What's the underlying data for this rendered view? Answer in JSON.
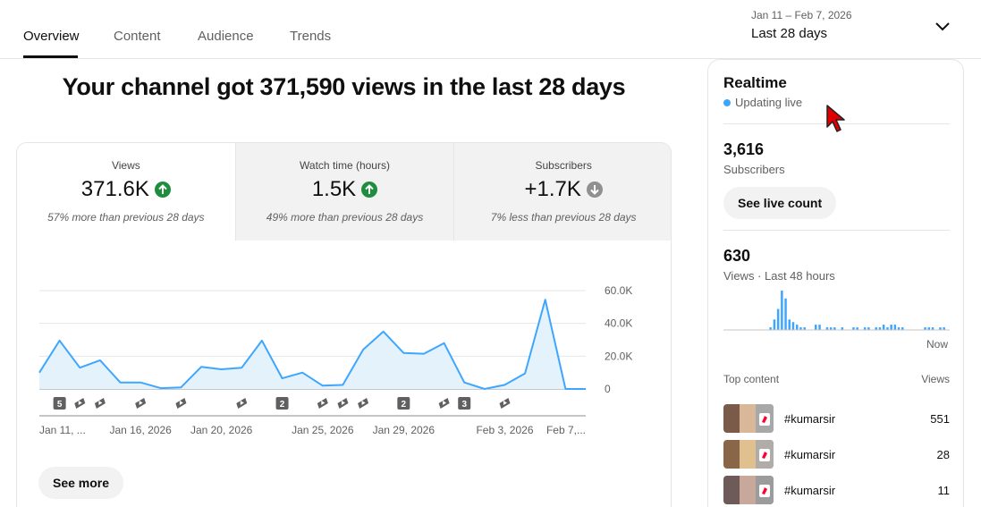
{
  "tabs": [
    {
      "label": "Overview",
      "active": true
    },
    {
      "label": "Content",
      "active": false
    },
    {
      "label": "Audience",
      "active": false
    },
    {
      "label": "Trends",
      "active": false
    }
  ],
  "date_range": {
    "dates": "Jan 11 – Feb 7, 2026",
    "label": "Last 28 days"
  },
  "headline": "Your channel got 371,590 views in the last 28 days",
  "metrics": [
    {
      "label": "Views",
      "value": "371.6K",
      "trend": "up",
      "note": "57% more than previous 28 days"
    },
    {
      "label": "Watch time (hours)",
      "value": "1.5K",
      "trend": "up",
      "note": "49% more than previous 28 days"
    },
    {
      "label": "Subscribers",
      "value": "+1.7K",
      "trend": "down",
      "note": "7% less than previous 28 days"
    }
  ],
  "see_more_label": "See more",
  "chart_data": {
    "type": "area",
    "x": [
      "Jan 11",
      "Jan 12",
      "Jan 13",
      "Jan 14",
      "Jan 15",
      "Jan 16",
      "Jan 17",
      "Jan 18",
      "Jan 19",
      "Jan 20",
      "Jan 21",
      "Jan 22",
      "Jan 23",
      "Jan 24",
      "Jan 25",
      "Jan 26",
      "Jan 27",
      "Jan 28",
      "Jan 29",
      "Jan 30",
      "Jan 31",
      "Feb 1",
      "Feb 2",
      "Feb 3",
      "Feb 4",
      "Feb 5",
      "Feb 6",
      "Feb 7"
    ],
    "series": [
      {
        "values": [
          10000,
          29500,
          13000,
          17500,
          4000,
          4000,
          500,
          1000,
          13500,
          12000,
          13000,
          29500,
          6500,
          10000,
          2000,
          2500,
          24000,
          35000,
          22000,
          21500,
          28000,
          4000,
          0,
          2500,
          9500,
          54500,
          0,
          0
        ]
      }
    ],
    "x_tick_labels": [
      "Jan 11, ...",
      "Jan 16, 2026",
      "Jan 20, 2026",
      "Jan 25, 2026",
      "Jan 29, 2026",
      "Feb 3, 2026",
      "Feb 7,..."
    ],
    "y_tick_labels": [
      "60.0K",
      "40.0K",
      "20.0K",
      "0"
    ],
    "ylim": [
      0,
      60000
    ],
    "grid": true,
    "upload_markers": [
      {
        "index": 1,
        "label": "5"
      },
      {
        "index": 2,
        "label": ""
      },
      {
        "index": 3,
        "label": ""
      },
      {
        "index": 5,
        "label": ""
      },
      {
        "index": 7,
        "label": ""
      },
      {
        "index": 10,
        "label": ""
      },
      {
        "index": 12,
        "label": "2"
      },
      {
        "index": 14,
        "label": ""
      },
      {
        "index": 15,
        "label": ""
      },
      {
        "index": 16,
        "label": ""
      },
      {
        "index": 18,
        "label": "2"
      },
      {
        "index": 20,
        "label": ""
      },
      {
        "index": 21,
        "label": "3"
      },
      {
        "index": 23,
        "label": ""
      }
    ],
    "line_color": "#3ea6ff",
    "fill_color": "#e3f2fb"
  },
  "realtime": {
    "title": "Realtime",
    "live_label": "Updating live",
    "subscribers_value": "3,616",
    "subscribers_label": "Subscribers",
    "live_count_button": "See live count",
    "views_value": "630",
    "views_label": "Views · Last 48 hours",
    "now_label": "Now",
    "bars": [
      0,
      0,
      0,
      0,
      0,
      0,
      0,
      0,
      0,
      0,
      0,
      0,
      1,
      4,
      8,
      15,
      12,
      4,
      3,
      2,
      1,
      1,
      0,
      0,
      2,
      2,
      0,
      1,
      1,
      1,
      0,
      1,
      0,
      0,
      1,
      1,
      0,
      1,
      1,
      0,
      1,
      1,
      2,
      1,
      2,
      2,
      1,
      1,
      0,
      0,
      0,
      0,
      0,
      1,
      1,
      1,
      0,
      1,
      1,
      0
    ],
    "top_content_label": "Top content",
    "views_column_label": "Views",
    "items": [
      {
        "title": "#kumarsir",
        "views": "551"
      },
      {
        "title": "#kumarsir",
        "views": "28"
      },
      {
        "title": "#kumarsir",
        "views": "11"
      }
    ]
  },
  "colors": {
    "accent": "#3ea6ff",
    "up": "#1e8e3e",
    "down": "#909090"
  }
}
